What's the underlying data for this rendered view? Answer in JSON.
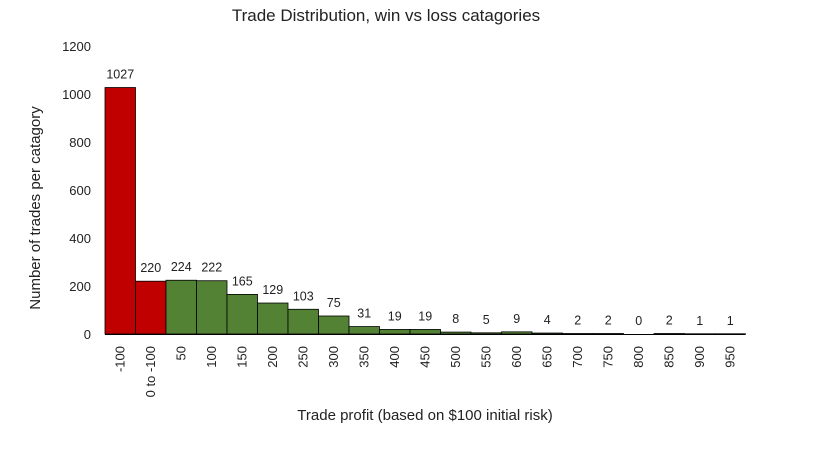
{
  "chart_data": {
    "type": "bar",
    "title": "Trade Distribution, win vs loss catagories",
    "xlabel": "Trade profit (based on $100 initial risk)",
    "ylabel": "Number of trades per catagory",
    "categories": [
      "-100",
      "0 to -100",
      "50",
      "100",
      "150",
      "200",
      "250",
      "300",
      "350",
      "400",
      "450",
      "500",
      "550",
      "600",
      "650",
      "700",
      "750",
      "800",
      "850",
      "900",
      "950"
    ],
    "values": [
      1027,
      220,
      224,
      222,
      165,
      129,
      103,
      75,
      31,
      19,
      19,
      8,
      5,
      9,
      4,
      2,
      2,
      0,
      2,
      1,
      1
    ],
    "bar_colors": [
      "#c00000",
      "#c00000",
      "#548235",
      "#548235",
      "#548235",
      "#548235",
      "#548235",
      "#548235",
      "#548235",
      "#548235",
      "#548235",
      "#548235",
      "#548235",
      "#548235",
      "#548235",
      "#548235",
      "#548235",
      "#548235",
      "#548235",
      "#548235",
      "#548235"
    ],
    "ylim": [
      0,
      1200
    ],
    "yticks": [
      0,
      200,
      400,
      600,
      800,
      1000,
      1200
    ],
    "grid": false,
    "legend": "none"
  }
}
